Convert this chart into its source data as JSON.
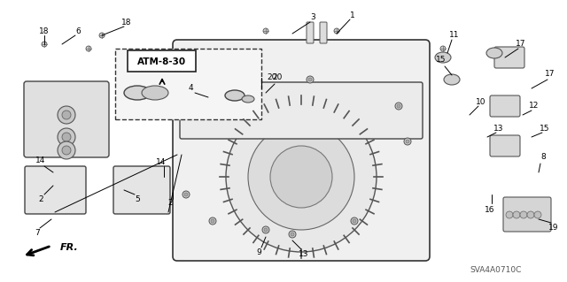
{
  "bg_color": "#ffffff",
  "fig_width": 6.4,
  "fig_height": 3.19,
  "dpi": 100,
  "title": "",
  "watermark": "SVA4A0710C",
  "direction_label": "FR.",
  "atm_label": "ATM-8-30",
  "part_numbers": [
    1,
    2,
    3,
    4,
    5,
    6,
    7,
    8,
    9,
    10,
    11,
    12,
    13,
    14,
    15,
    16,
    17,
    18,
    19,
    20
  ],
  "line_color": "#000000",
  "diagram_color": "#555555"
}
